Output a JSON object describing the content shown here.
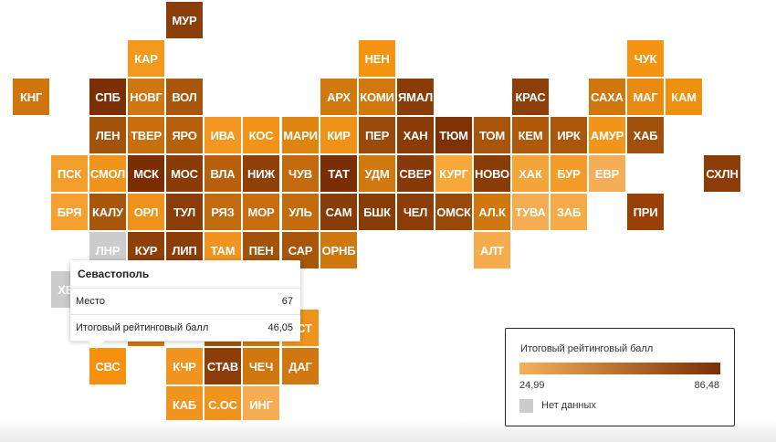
{
  "colors": {
    "scale_low": "#f8b057",
    "scale_high": "#7a2e03",
    "no_data": "#cccccc",
    "tooltip_selected": "#f5910f"
  },
  "scale": {
    "min": 24.99,
    "max": 86.48,
    "min_label": "24,99",
    "max_label": "86,48"
  },
  "regions": [
    {
      "code": "МУР",
      "color": "#8b3d0a"
    },
    {
      "code": "КАР",
      "color": "#f39a1e"
    },
    {
      "code": "НЕН",
      "color": "#f59410"
    },
    {
      "code": "ЧУК",
      "color": "#f59410"
    },
    {
      "code": "КНГ",
      "color": "#d0740d"
    },
    {
      "code": "СПБ",
      "color": "#7d2f04"
    },
    {
      "code": "НОВГ",
      "color": "#d0780f"
    },
    {
      "code": "ВОЛ",
      "color": "#a8560b"
    },
    {
      "code": "АРХ",
      "color": "#d1790f"
    },
    {
      "code": "КОМИ",
      "color": "#d2780d"
    },
    {
      "code": "ЯМАЛ",
      "color": "#8a3c07"
    },
    {
      "code": "КРАС",
      "color": "#8e3f08"
    },
    {
      "code": "САХА",
      "color": "#d0770d"
    },
    {
      "code": "МАГ",
      "color": "#e98b12"
    },
    {
      "code": "КАМ",
      "color": "#f0900f"
    },
    {
      "code": "ЛЕН",
      "color": "#a4530b"
    },
    {
      "code": "ТВЕР",
      "color": "#c96f0f"
    },
    {
      "code": "ЯРО",
      "color": "#b5600c"
    },
    {
      "code": "ИВА",
      "color": "#f39720"
    },
    {
      "code": "КОС",
      "color": "#f29317"
    },
    {
      "code": "МАРИ",
      "color": "#e08410"
    },
    {
      "code": "КИР",
      "color": "#ef9216"
    },
    {
      "code": "ПЕР",
      "color": "#9a4a09"
    },
    {
      "code": "ХАН",
      "color": "#8a3b07"
    },
    {
      "code": "ТЮМ",
      "color": "#7e3104"
    },
    {
      "code": "ТОМ",
      "color": "#a8550b"
    },
    {
      "code": "КЕМ",
      "color": "#b1590b"
    },
    {
      "code": "ИРК",
      "color": "#ab570b"
    },
    {
      "code": "АМУР",
      "color": "#f2951b"
    },
    {
      "code": "ХАБ",
      "color": "#a0500a"
    },
    {
      "code": "ПСК",
      "color": "#f39d2a"
    },
    {
      "code": "СМОЛ",
      "color": "#f0931a"
    },
    {
      "code": "МСК",
      "color": "#7b2e03"
    },
    {
      "code": "МОС",
      "color": "#893a07"
    },
    {
      "code": "ВЛА",
      "color": "#b95f0d"
    },
    {
      "code": "НИЖ",
      "color": "#8f4008"
    },
    {
      "code": "ЧУВ",
      "color": "#c5690e"
    },
    {
      "code": "ТАТ",
      "color": "#7b2e03"
    },
    {
      "code": "УДМ",
      "color": "#d1780f"
    },
    {
      "code": "СВЕР",
      "color": "#873907"
    },
    {
      "code": "КУРГ",
      "color": "#f7a838"
    },
    {
      "code": "НОВО",
      "color": "#8a3c07"
    },
    {
      "code": "ХАК",
      "color": "#f5a437"
    },
    {
      "code": "БУР",
      "color": "#f39c29"
    },
    {
      "code": "ЕВР",
      "color": "#f6ad58"
    },
    {
      "code": "СХЛН",
      "color": "#8c3c07"
    },
    {
      "code": "БРЯ",
      "color": "#f5a030"
    },
    {
      "code": "КАЛУ",
      "color": "#a8560b"
    },
    {
      "code": "ОРЛ",
      "color": "#f0931a"
    },
    {
      "code": "ТУЛ",
      "color": "#8c3c07"
    },
    {
      "code": "РЯЗ",
      "color": "#c16a0e"
    },
    {
      "code": "МОР",
      "color": "#c86e0e"
    },
    {
      "code": "УЛЬ",
      "color": "#c46b0e"
    },
    {
      "code": "САМ",
      "color": "#8a3c07"
    },
    {
      "code": "БШК",
      "color": "#8a3c07"
    },
    {
      "code": "ЧЕЛ",
      "color": "#8d3d07"
    },
    {
      "code": "ОМСК",
      "color": "#984808"
    },
    {
      "code": "АЛ.К",
      "color": "#d0780f"
    },
    {
      "code": "ТУВА",
      "color": "#f6ad52"
    },
    {
      "code": "ЗАБ",
      "color": "#f6aa48"
    },
    {
      "code": "ПРИ",
      "color": "#993f07"
    },
    {
      "code": "ЛНР",
      "color": "#cccccc"
    },
    {
      "code": "КУР",
      "color": "#8f3f08"
    },
    {
      "code": "ЛИП",
      "color": "#8c3c07"
    },
    {
      "code": "ТАМ",
      "color": "#f29520"
    },
    {
      "code": "ПЕН",
      "color": "#a4530b"
    },
    {
      "code": "САР",
      "color": "#a8560b"
    },
    {
      "code": "ОРНБ",
      "color": "#d0780f"
    },
    {
      "code": "АЛТ",
      "color": "#f6ab4c"
    },
    {
      "code": "ХЕР",
      "color": "#cccccc"
    },
    {
      "code": "",
      "color": "#d0780f"
    },
    {
      "code": "",
      "color": "#a4530b"
    },
    {
      "code": "",
      "color": "#d0780f"
    },
    {
      "code": "АСТ",
      "color": "#f0931a"
    },
    {
      "code": "СВС",
      "color": "#f5910f"
    },
    {
      "code": "КЧР",
      "color": "#f29520"
    },
    {
      "code": "СТАВ",
      "color": "#8c3c07"
    },
    {
      "code": "ЧЕЧ",
      "color": "#d0780f"
    },
    {
      "code": "ДАГ",
      "color": "#d0780f"
    },
    {
      "code": "КАБ",
      "color": "#f29520"
    },
    {
      "code": "С.ОС",
      "color": "#f0931a"
    },
    {
      "code": "ИНГ",
      "color": "#f6ad52"
    }
  ],
  "tooltip": {
    "title": "Севастополь",
    "rows": [
      {
        "label": "Место",
        "value": "67"
      },
      {
        "label": "Итоговый рейтинговый балл",
        "value": "46,05"
      }
    ]
  },
  "legend": {
    "title": "Итоговый рейтинговый балл",
    "min_label": "24,99",
    "max_label": "86,48",
    "no_data_label": "Нет данных"
  }
}
